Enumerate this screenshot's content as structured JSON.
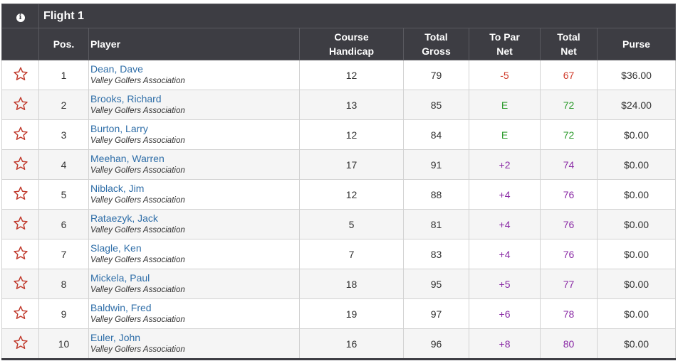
{
  "flight": {
    "title": "Flight 1",
    "info_icon": "info-icon"
  },
  "headers": {
    "pos": "Pos.",
    "player": "Player",
    "handicap_1": "Course",
    "handicap_2": "Handicap",
    "gross_1": "Total",
    "gross_2": "Gross",
    "topar_1": "To Par",
    "topar_2": "Net",
    "net_1": "Total",
    "net_2": "Net",
    "purse": "Purse"
  },
  "colors": {
    "header_bg": "#3d3d43",
    "link": "#2f6ea8",
    "under_par": "#d03a2a",
    "even_par": "#2a9a2a",
    "over_par": "#8a2aa5",
    "star": "#c0392b"
  },
  "rows": [
    {
      "pos": "1",
      "name": "Dean, Dave",
      "assoc": "Valley Golfers Association",
      "handicap": "12",
      "gross": "79",
      "topar": "-5",
      "net": "67",
      "purse": "$36.00",
      "status": "neg"
    },
    {
      "pos": "2",
      "name": "Brooks, Richard",
      "assoc": "Valley Golfers Association",
      "handicap": "13",
      "gross": "85",
      "topar": "E",
      "net": "72",
      "purse": "$24.00",
      "status": "even"
    },
    {
      "pos": "3",
      "name": "Burton, Larry",
      "assoc": "Valley Golfers Association",
      "handicap": "12",
      "gross": "84",
      "topar": "E",
      "net": "72",
      "purse": "$0.00",
      "status": "even"
    },
    {
      "pos": "4",
      "name": "Meehan, Warren",
      "assoc": "Valley Golfers Association",
      "handicap": "17",
      "gross": "91",
      "topar": "+2",
      "net": "74",
      "purse": "$0.00",
      "status": "pos"
    },
    {
      "pos": "5",
      "name": "Niblack, Jim",
      "assoc": "Valley Golfers Association",
      "handicap": "12",
      "gross": "88",
      "topar": "+4",
      "net": "76",
      "purse": "$0.00",
      "status": "pos"
    },
    {
      "pos": "6",
      "name": "Rataezyk, Jack",
      "assoc": "Valley Golfers Association",
      "handicap": "5",
      "gross": "81",
      "topar": "+4",
      "net": "76",
      "purse": "$0.00",
      "status": "pos"
    },
    {
      "pos": "7",
      "name": "Slagle, Ken",
      "assoc": "Valley Golfers Association",
      "handicap": "7",
      "gross": "83",
      "topar": "+4",
      "net": "76",
      "purse": "$0.00",
      "status": "pos"
    },
    {
      "pos": "8",
      "name": "Mickela, Paul",
      "assoc": "Valley Golfers Association",
      "handicap": "18",
      "gross": "95",
      "topar": "+5",
      "net": "77",
      "purse": "$0.00",
      "status": "pos"
    },
    {
      "pos": "9",
      "name": "Baldwin, Fred",
      "assoc": "Valley Golfers Association",
      "handicap": "19",
      "gross": "97",
      "topar": "+6",
      "net": "78",
      "purse": "$0.00",
      "status": "pos"
    },
    {
      "pos": "10",
      "name": "Euler, John",
      "assoc": "Valley Golfers Association",
      "handicap": "16",
      "gross": "96",
      "topar": "+8",
      "net": "80",
      "purse": "$0.00",
      "status": "pos"
    }
  ]
}
